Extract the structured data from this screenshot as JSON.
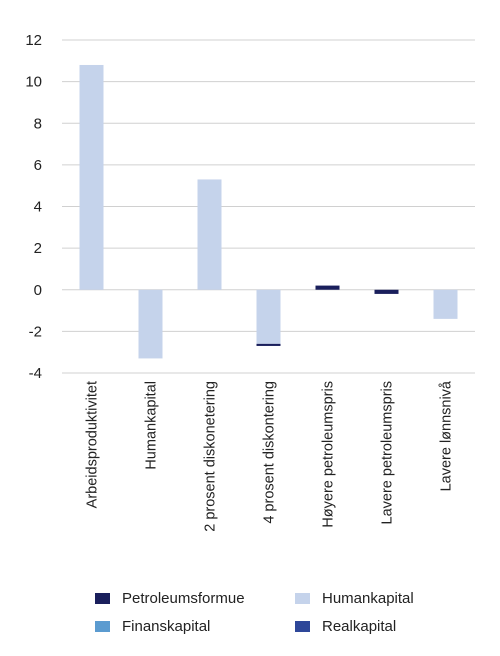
{
  "chart_data": {
    "type": "bar",
    "categories": [
      "Arbeidsproduktivitet",
      "Humankapital",
      "2 prosent diskonetering",
      "4 prosent diskontering",
      "Høyere petroleumspris",
      "Lavere petroleumspris",
      "Lavere lønnsnivå"
    ],
    "series": [
      {
        "name": "Petroleumsformue",
        "color": "#1a1f5c",
        "values": [
          0,
          0,
          0,
          -0.1,
          0.2,
          -0.2,
          0
        ]
      },
      {
        "name": "Finanskapital",
        "color": "#5b9bd0",
        "values": [
          0,
          0,
          0,
          0,
          0,
          0,
          0
        ]
      },
      {
        "name": "Humankapital",
        "color": "#c5d3eb",
        "values": [
          10.8,
          -3.3,
          5.3,
          -2.6,
          0,
          0,
          -1.4
        ]
      },
      {
        "name": "Realkapital",
        "color": "#2e4799",
        "values": [
          0,
          0,
          0,
          0,
          0,
          0,
          0
        ]
      }
    ],
    "stacked": true,
    "ylim": [
      -4,
      12
    ],
    "yticks": [
      12,
      10,
      8,
      6,
      4,
      2,
      0,
      -2,
      -4
    ],
    "grid": true,
    "legend_position": "bottom"
  }
}
